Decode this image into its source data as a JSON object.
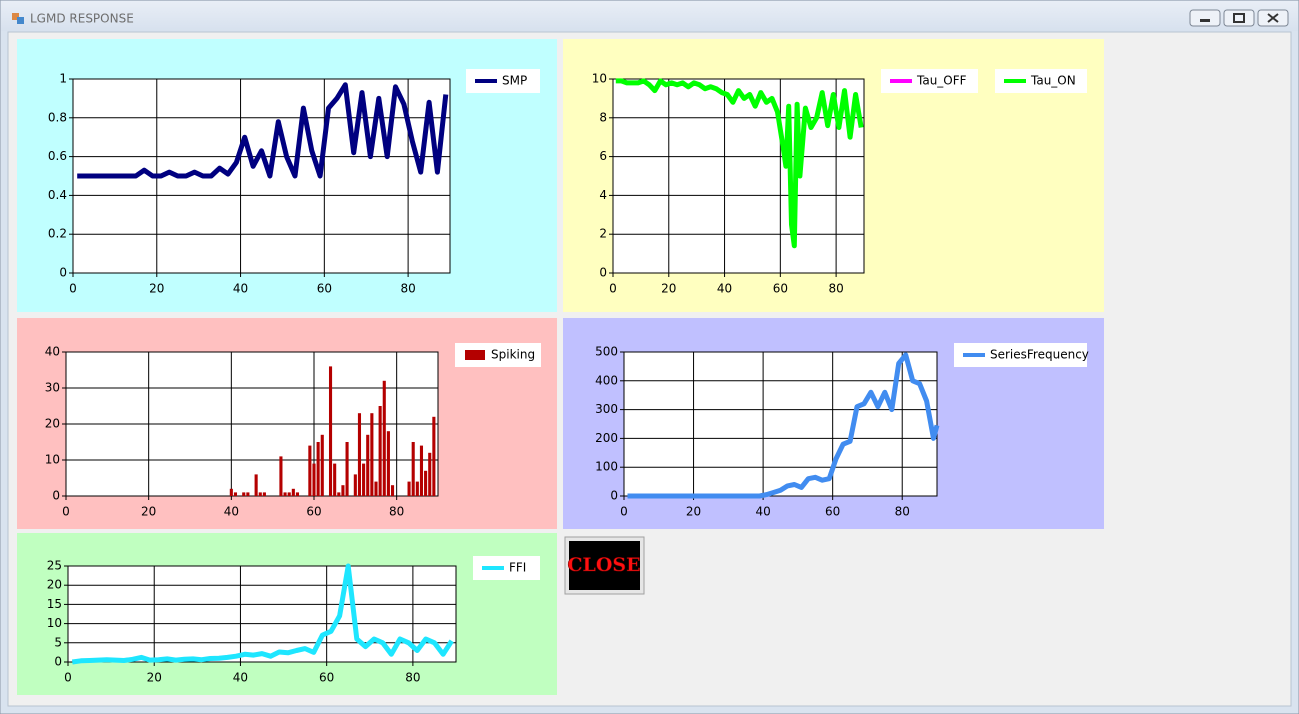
{
  "window_title": "LGMD RESPONSE",
  "close_button": "CLOSE",
  "chart_data": [
    {
      "type": "line",
      "x": [
        1,
        3,
        5,
        7,
        9,
        11,
        13,
        15,
        17,
        19,
        21,
        23,
        25,
        27,
        29,
        31,
        33,
        35,
        37,
        39,
        41,
        43,
        45,
        47,
        49,
        51,
        53,
        55,
        57,
        59,
        61,
        63,
        65,
        67,
        69,
        71,
        73,
        75,
        77,
        79,
        81,
        83,
        85,
        87,
        89
      ],
      "series": [
        {
          "name": "SMP",
          "color": "#000080",
          "values": [
            0.5,
            0.5,
            0.5,
            0.5,
            0.5,
            0.5,
            0.5,
            0.5,
            0.53,
            0.5,
            0.5,
            0.52,
            0.5,
            0.5,
            0.52,
            0.5,
            0.5,
            0.54,
            0.51,
            0.57,
            0.7,
            0.55,
            0.63,
            0.5,
            0.78,
            0.6,
            0.5,
            0.85,
            0.63,
            0.5,
            0.85,
            0.9,
            0.97,
            0.62,
            0.93,
            0.6,
            0.9,
            0.6,
            0.96,
            0.87,
            0.68,
            0.52,
            0.88,
            0.52,
            0.92
          ]
        }
      ],
      "xlim": [
        0,
        90
      ],
      "xticks": [
        0,
        20,
        40,
        60,
        80
      ],
      "ylim": [
        0,
        1
      ],
      "yticks": [
        0,
        0.2,
        0.4,
        0.6,
        0.8,
        1
      ],
      "grid": true
    },
    {
      "type": "line",
      "x": [
        1,
        3,
        5,
        7,
        9,
        11,
        13,
        15,
        17,
        19,
        21,
        23,
        25,
        27,
        29,
        31,
        33,
        35,
        37,
        39,
        41,
        43,
        45,
        47,
        49,
        51,
        53,
        55,
        57,
        59,
        61,
        62,
        63,
        64,
        65,
        66,
        67,
        69,
        71,
        73,
        75,
        77,
        79,
        81,
        83,
        85,
        87,
        89
      ],
      "series": [
        {
          "name": "Tau_OFF",
          "color": "#ff00ff",
          "values": [
            null,
            null,
            null,
            null,
            null,
            null,
            null,
            null,
            null,
            null,
            null,
            null,
            null,
            null,
            null,
            null,
            null,
            null,
            null,
            null,
            null,
            null,
            null,
            null,
            null,
            null,
            null,
            null,
            null,
            null,
            null,
            null,
            null,
            null,
            null,
            null,
            null,
            null,
            null,
            null,
            null,
            null,
            null,
            null,
            null,
            null,
            null,
            null
          ]
        },
        {
          "name": "Tau_ON",
          "color": "#00ff00",
          "values": [
            9.9,
            9.9,
            9.8,
            9.8,
            9.8,
            9.9,
            9.7,
            9.4,
            9.9,
            9.7,
            9.8,
            9.7,
            9.8,
            9.6,
            9.8,
            9.7,
            9.5,
            9.6,
            9.5,
            9.3,
            9.2,
            8.8,
            9.4,
            9.0,
            9.2,
            8.6,
            9.3,
            8.8,
            9.0,
            8.3,
            6.5,
            5.5,
            8.6,
            2.5,
            1.4,
            8.7,
            5.0,
            8.5,
            7.5,
            8.0,
            9.3,
            7.6,
            9.2,
            7.5,
            9.4,
            7.0,
            9.2,
            7.5
          ]
        }
      ],
      "xlim": [
        0,
        90
      ],
      "xticks": [
        0,
        20,
        40,
        60,
        80
      ],
      "ylim": [
        0,
        10
      ],
      "yticks": [
        0,
        2,
        4,
        6,
        8,
        10
      ],
      "grid": true
    },
    {
      "type": "bar",
      "x": [
        40,
        41,
        42,
        43,
        44,
        45,
        46,
        47,
        48,
        49,
        50,
        51,
        52,
        53,
        54,
        55,
        56,
        57,
        58,
        59,
        60,
        61,
        62,
        63,
        64,
        65,
        66,
        67,
        68,
        69,
        70,
        71,
        72,
        73,
        74,
        75,
        76,
        77,
        78,
        79,
        80,
        81,
        82,
        83,
        84,
        85,
        86,
        87,
        88,
        89
      ],
      "series": [
        {
          "name": "Spiking",
          "color": "#b40000",
          "values": [
            2,
            1,
            0,
            1,
            1,
            0,
            6,
            1,
            1,
            0,
            0,
            0,
            11,
            1,
            1,
            2,
            1,
            0,
            0,
            14,
            9,
            15,
            17,
            0,
            36,
            9,
            1,
            3,
            15,
            0,
            6,
            23,
            9,
            17,
            23,
            4,
            25,
            32,
            18,
            3,
            0,
            0,
            0,
            4,
            15,
            4,
            14,
            7,
            12,
            22
          ]
        }
      ],
      "xlim": [
        0,
        90
      ],
      "xticks": [
        0,
        20,
        40,
        60,
        80
      ],
      "ylim": [
        0,
        40
      ],
      "yticks": [
        0,
        10,
        20,
        30,
        40
      ],
      "grid": true
    },
    {
      "type": "line",
      "x": [
        1,
        3,
        5,
        7,
        9,
        11,
        13,
        15,
        17,
        19,
        21,
        23,
        25,
        27,
        29,
        31,
        33,
        35,
        37,
        39,
        41,
        43,
        45,
        47,
        49,
        51,
        53,
        55,
        57,
        59,
        61,
        63,
        65,
        67,
        69,
        71,
        73,
        75,
        77,
        79,
        81,
        83,
        85,
        87,
        89,
        90
      ],
      "series": [
        {
          "name": "SeriesFrequency",
          "color": "#418cf0",
          "values": [
            0,
            0,
            0,
            0,
            0,
            0,
            0,
            0,
            0,
            0,
            0,
            0,
            0,
            0,
            0,
            0,
            0,
            0,
            0,
            0,
            5,
            12,
            20,
            35,
            40,
            30,
            60,
            65,
            55,
            60,
            130,
            180,
            190,
            310,
            320,
            360,
            310,
            360,
            300,
            460,
            490,
            400,
            390,
            330,
            200,
            245
          ]
        }
      ],
      "xlim": [
        0,
        90
      ],
      "xticks": [
        0,
        20,
        40,
        60,
        80
      ],
      "ylim": [
        0,
        500
      ],
      "yticks": [
        0,
        100,
        200,
        300,
        400,
        500
      ],
      "grid": true
    },
    {
      "type": "line",
      "x": [
        1,
        3,
        5,
        7,
        9,
        11,
        13,
        15,
        17,
        19,
        21,
        23,
        25,
        27,
        29,
        31,
        33,
        35,
        37,
        39,
        41,
        43,
        45,
        47,
        49,
        51,
        53,
        55,
        57,
        59,
        61,
        63,
        65,
        67,
        69,
        71,
        73,
        75,
        77,
        79,
        81,
        83,
        85,
        87,
        89
      ],
      "series": [
        {
          "name": "FFI",
          "color": "#1ee6ff",
          "values": [
            0,
            0.3,
            0.4,
            0.5,
            0.6,
            0.5,
            0.4,
            0.7,
            1.2,
            0.5,
            0.6,
            0.8,
            0.5,
            0.7,
            0.8,
            0.6,
            0.9,
            1,
            1.2,
            1.5,
            2,
            1.8,
            2.2,
            1.5,
            2.6,
            2.4,
            3,
            3.5,
            2.5,
            7,
            8,
            12,
            25,
            6,
            4,
            6,
            5,
            2,
            6,
            5,
            3,
            6,
            5,
            2,
            5.5
          ]
        }
      ],
      "xlim": [
        0,
        90
      ],
      "xticks": [
        0,
        20,
        40,
        60,
        80
      ],
      "ylim": [
        0,
        25
      ],
      "yticks": [
        0,
        5,
        10,
        15,
        20,
        25
      ],
      "grid": true
    }
  ]
}
